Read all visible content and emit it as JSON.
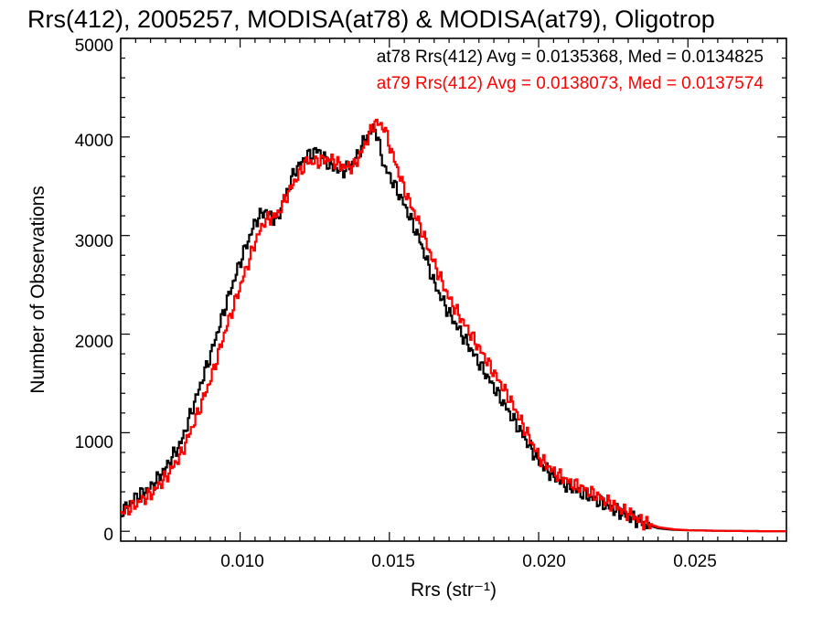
{
  "chart_data": {
    "type": "line",
    "title": "Rrs(412), 2005257, MODISA(at78) & MODISA(at79), Oligotrop",
    "xlabel": "Rrs (str⁻¹)",
    "ylabel": "Number of Observations",
    "xlim": [
      0.006,
      0.0283
    ],
    "ylim": [
      -100,
      5000
    ],
    "x_ticks": [
      "0.010",
      "0.015",
      "0.020",
      "0.025"
    ],
    "x_tick_values": [
      0.01,
      0.015,
      0.02,
      0.025
    ],
    "y_ticks": [
      "0",
      "1000",
      "2000",
      "3000",
      "4000",
      "5000"
    ],
    "y_tick_values": [
      0,
      1000,
      2000,
      3000,
      4000,
      5000
    ],
    "grid": false,
    "annotations": [
      {
        "text": "at78 Rrs(412) Avg = 0.0135368, Med = 0.0134825",
        "color": "#000000"
      },
      {
        "text": "at79 Rrs(412) Avg = 0.0138073, Med = 0.0137574",
        "color": "#ff0000"
      }
    ],
    "series": [
      {
        "color": "#000000",
        "x": [
          0.006,
          0.0065,
          0.007,
          0.0075,
          0.008,
          0.0085,
          0.009,
          0.0095,
          0.01,
          0.0105,
          0.0108,
          0.0112,
          0.0118,
          0.0122,
          0.0126,
          0.013,
          0.0134,
          0.0138,
          0.0142,
          0.0145,
          0.0148,
          0.015,
          0.0155,
          0.016,
          0.0165,
          0.017,
          0.0175,
          0.018,
          0.0185,
          0.019,
          0.0195,
          0.02,
          0.0205,
          0.021,
          0.0215,
          0.022,
          0.0225,
          0.023,
          0.0235,
          0.024,
          0.0245,
          0.025,
          0.026,
          0.027,
          0.0283
        ],
        "y": [
          200,
          350,
          450,
          650,
          900,
          1350,
          1800,
          2300,
          2750,
          3150,
          3250,
          3150,
          3650,
          3800,
          3870,
          3700,
          3650,
          3750,
          4000,
          4100,
          3700,
          3600,
          3300,
          2950,
          2500,
          2200,
          1950,
          1700,
          1450,
          1200,
          950,
          700,
          550,
          450,
          380,
          300,
          220,
          150,
          80,
          30,
          15,
          10,
          5,
          2,
          0
        ]
      },
      {
        "color": "#ff0000",
        "x": [
          0.006,
          0.0065,
          0.007,
          0.0075,
          0.008,
          0.0085,
          0.009,
          0.0095,
          0.01,
          0.0105,
          0.0108,
          0.0112,
          0.0118,
          0.0122,
          0.0126,
          0.013,
          0.0134,
          0.0138,
          0.0142,
          0.0145,
          0.0148,
          0.015,
          0.0155,
          0.016,
          0.0165,
          0.017,
          0.0175,
          0.018,
          0.0185,
          0.019,
          0.0195,
          0.02,
          0.0205,
          0.021,
          0.0215,
          0.022,
          0.0225,
          0.023,
          0.0235,
          0.024,
          0.0245,
          0.025,
          0.026,
          0.027,
          0.0283
        ],
        "y": [
          180,
          280,
          380,
          550,
          780,
          1150,
          1550,
          2050,
          2500,
          2950,
          3150,
          3200,
          3550,
          3750,
          3750,
          3780,
          3700,
          3700,
          3950,
          4150,
          4100,
          3900,
          3450,
          3100,
          2700,
          2350,
          2100,
          1850,
          1600,
          1350,
          1050,
          750,
          600,
          500,
          430,
          350,
          260,
          180,
          90,
          40,
          20,
          10,
          5,
          2,
          0
        ]
      }
    ]
  }
}
